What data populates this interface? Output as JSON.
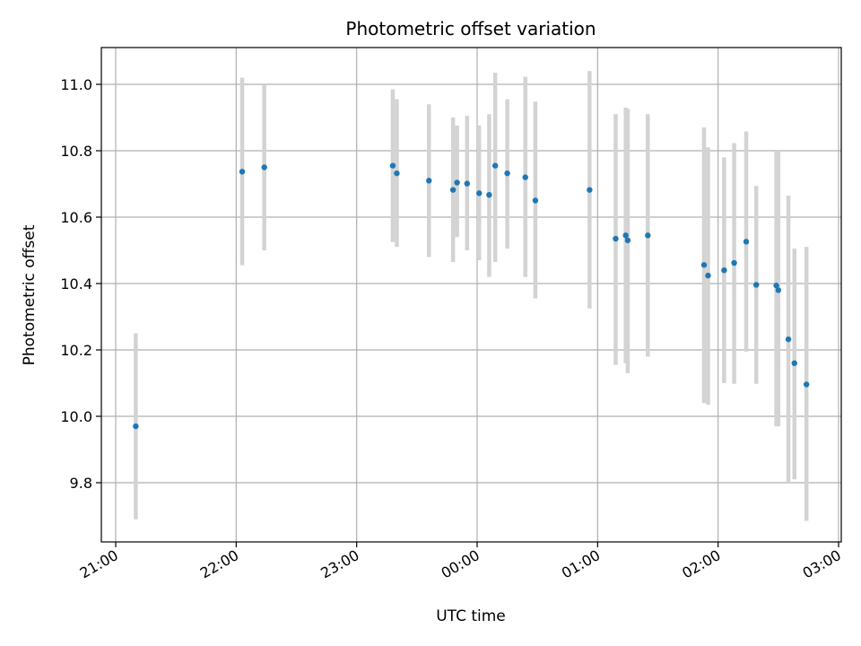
{
  "chart_data": {
    "type": "scatter",
    "title": "Photometric offset variation",
    "xlabel": "UTC time",
    "ylabel": "Photometric offset",
    "x_tick_labels": [
      "21:00",
      "22:00",
      "23:00",
      "00:00",
      "01:00",
      "02:00",
      "03:00"
    ],
    "y_tick_labels": [
      "9.8",
      "10.0",
      "10.2",
      "10.4",
      "10.6",
      "10.8",
      "11.0"
    ],
    "ylim": [
      9.625,
      11.11
    ],
    "grid": true,
    "colors": {
      "points": "#1f77b4",
      "error_bars": "#d3d3d3",
      "grid": "#b0b0b0"
    },
    "points": [
      {
        "x": "21:10",
        "y": 9.97,
        "err_low": 9.69,
        "err_high": 10.25
      },
      {
        "x": "22:03",
        "y": 10.737,
        "err_low": 10.455,
        "err_high": 11.02
      },
      {
        "x": "22:14",
        "y": 10.75,
        "err_low": 10.5,
        "err_high": 10.998
      },
      {
        "x": "23:18",
        "y": 10.755,
        "err_low": 10.525,
        "err_high": 10.985
      },
      {
        "x": "23:20",
        "y": 10.732,
        "err_low": 10.51,
        "err_high": 10.955
      },
      {
        "x": "23:36",
        "y": 10.71,
        "err_low": 10.48,
        "err_high": 10.94
      },
      {
        "x": "23:48",
        "y": 10.682,
        "err_low": 10.465,
        "err_high": 10.9
      },
      {
        "x": "23:50",
        "y": 10.704,
        "err_low": 10.54,
        "err_high": 10.876
      },
      {
        "x": "23:55",
        "y": 10.701,
        "err_low": 10.5,
        "err_high": 10.905
      },
      {
        "x": "00:01",
        "y": 10.672,
        "err_low": 10.47,
        "err_high": 10.876
      },
      {
        "x": "00:06",
        "y": 10.667,
        "err_low": 10.42,
        "err_high": 10.91
      },
      {
        "x": "00:09",
        "y": 10.755,
        "err_low": 10.465,
        "err_high": 11.035
      },
      {
        "x": "00:15",
        "y": 10.732,
        "err_low": 10.505,
        "err_high": 10.955
      },
      {
        "x": "00:24",
        "y": 10.72,
        "err_low": 10.42,
        "err_high": 11.023
      },
      {
        "x": "00:29",
        "y": 10.65,
        "err_low": 10.355,
        "err_high": 10.948
      },
      {
        "x": "00:56",
        "y": 10.682,
        "err_low": 10.325,
        "err_high": 11.04
      },
      {
        "x": "01:09",
        "y": 10.535,
        "err_low": 10.155,
        "err_high": 10.91
      },
      {
        "x": "01:14",
        "y": 10.545,
        "err_low": 10.16,
        "err_high": 10.93
      },
      {
        "x": "01:15",
        "y": 10.53,
        "err_low": 10.13,
        "err_high": 10.926
      },
      {
        "x": "01:25",
        "y": 10.545,
        "err_low": 10.18,
        "err_high": 10.91
      },
      {
        "x": "01:53",
        "y": 10.456,
        "err_low": 10.04,
        "err_high": 10.87
      },
      {
        "x": "01:55",
        "y": 10.424,
        "err_low": 10.035,
        "err_high": 10.81
      },
      {
        "x": "02:03",
        "y": 10.44,
        "err_low": 10.1,
        "err_high": 10.78
      },
      {
        "x": "02:08",
        "y": 10.462,
        "err_low": 10.098,
        "err_high": 10.823
      },
      {
        "x": "02:14",
        "y": 10.526,
        "err_low": 10.195,
        "err_high": 10.858
      },
      {
        "x": "02:19",
        "y": 10.396,
        "err_low": 10.098,
        "err_high": 10.694
      },
      {
        "x": "02:29",
        "y": 10.394,
        "err_low": 9.97,
        "err_high": 10.8
      },
      {
        "x": "02:30",
        "y": 10.38,
        "err_low": 9.97,
        "err_high": 10.8
      },
      {
        "x": "02:35",
        "y": 10.232,
        "err_low": 9.8,
        "err_high": 10.665
      },
      {
        "x": "02:38",
        "y": 10.16,
        "err_low": 9.81,
        "err_high": 10.505
      },
      {
        "x": "02:44",
        "y": 10.096,
        "err_low": 9.685,
        "err_high": 10.51
      }
    ]
  }
}
